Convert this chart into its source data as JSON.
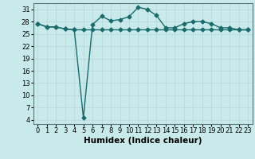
{
  "xlabel": "Humidex (Indice chaleur)",
  "x": [
    0,
    1,
    2,
    3,
    4,
    5,
    6,
    7,
    8,
    9,
    10,
    11,
    12,
    13,
    14,
    15,
    16,
    17,
    18,
    19,
    20,
    21,
    22,
    23
  ],
  "line1": [
    27.5,
    26.7,
    26.7,
    26.2,
    26.0,
    26.0,
    26.0,
    26.0,
    26.0,
    26.0,
    26.0,
    26.0,
    26.0,
    26.0,
    26.0,
    26.0,
    26.0,
    26.0,
    26.0,
    26.0,
    26.0,
    26.0,
    26.0,
    26.0
  ],
  "line2": [
    27.5,
    26.7,
    26.7,
    26.2,
    26.0,
    4.5,
    27.3,
    29.3,
    28.2,
    28.5,
    29.2,
    31.5,
    31.0,
    29.5,
    26.5,
    26.5,
    27.5,
    28.0,
    28.0,
    27.5,
    26.5,
    26.5,
    26.0,
    26.0
  ],
  "line_color": "#1a6b6b",
  "bg_color": "#c8eaea",
  "grid_color": "#b8d8d8",
  "ylim": [
    3,
    32.5
  ],
  "yticks": [
    4,
    7,
    10,
    13,
    16,
    19,
    22,
    25,
    28,
    31
  ],
  "xticks": [
    0,
    1,
    2,
    3,
    4,
    5,
    6,
    7,
    8,
    9,
    10,
    11,
    12,
    13,
    14,
    15,
    16,
    17,
    18,
    19,
    20,
    21,
    22,
    23
  ],
  "marker": "D",
  "markersize": 2.5,
  "linewidth": 1.0,
  "xlabel_fontsize": 7.5,
  "tick_fontsize": 6.0
}
